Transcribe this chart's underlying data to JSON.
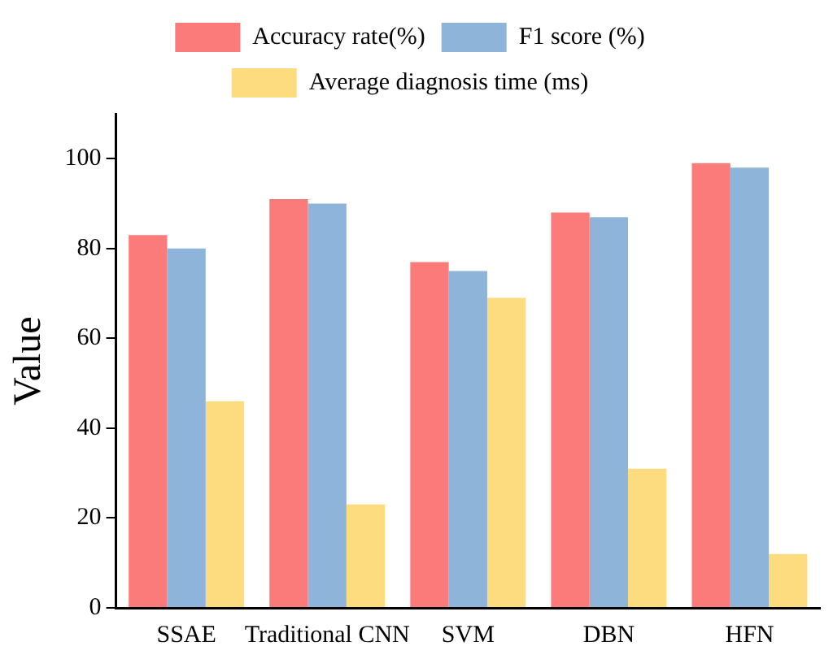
{
  "chart_data": {
    "type": "bar",
    "ylabel": "Value",
    "categories": [
      "SSAE",
      "Traditional CNN",
      "SVM",
      "DBN",
      "HFN"
    ],
    "series": [
      {
        "name": "Accuracy rate(%)",
        "color": "#fb7a7a",
        "values": [
          83,
          91,
          77,
          88,
          99
        ]
      },
      {
        "name": "F1 score (%)",
        "color": "#8fb4d9",
        "values": [
          80,
          90,
          75,
          87,
          98
        ]
      },
      {
        "name": "Average diagnosis time (ms)",
        "color": "#fddc7f",
        "values": [
          46,
          23,
          69,
          31,
          12
        ]
      }
    ],
    "ylim": [
      0,
      110
    ],
    "yticks": [
      0,
      20,
      40,
      60,
      80,
      100
    ],
    "grid": false,
    "legend": "top"
  }
}
